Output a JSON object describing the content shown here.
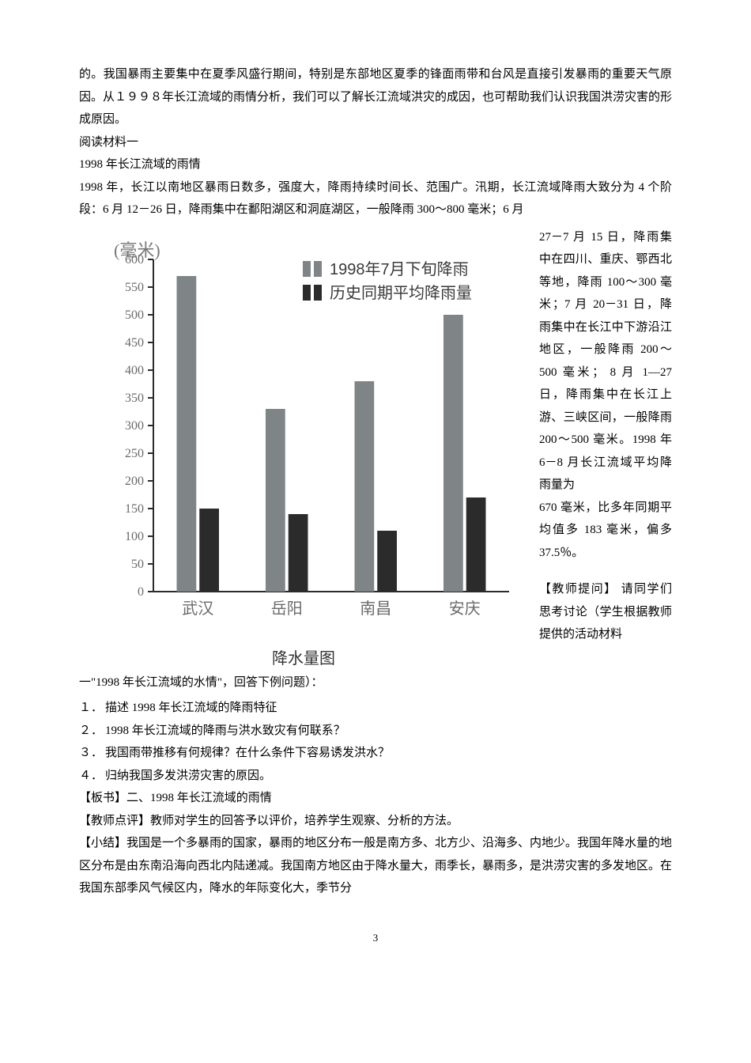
{
  "intro": {
    "p1": "的。我国暴雨主要集中在夏季风盛行期间，特别是东部地区夏季的锋面雨带和台风是直接引发暴雨的重要天气原因。从１９９８年长江流域的雨情分析，我们可以了解长江流域洪灾的成因，也可帮助我们认识我国洪涝灾害的形成原因。",
    "p2": "阅读材料一",
    "p3": "1998 年长江流域的雨情",
    "p4": "1998 年，长江以南地区暴雨日数多，强度大，降雨持续时间长、范围广。汛期，长江流域降雨大致分为 4 个阶段：6 月 12－26 日，降雨集中在鄱阳湖区和洞庭湖区，一般降雨 300～800 毫米；6 月"
  },
  "right": {
    "p1": "27－7 月 15 日，降雨集中在四川、重庆、鄂西北等地，降雨 100～300 毫米；7 月 20－31 日，降雨集中在长江中下游沿江地区，一般降雨 200～500 毫米； 8 月 1—27 日，降雨集中在长江上游、三峡区间，一般降雨 200～500 毫米。1998 年 6－8 月长江流域平均降雨量为",
    "p2": "670 毫米，比多年同期平均值多 183 毫米，偏多 37.5％。",
    "p3": "【教师提问】 请同学们思考讨论（学生根据教师提供的活动材料"
  },
  "below": {
    "lead": "一\"1998 年长江流域的水情\"，回答下例问题）：",
    "q1_num": "１．",
    "q1": "描述 1998 年长江流域的降雨特征",
    "q2_num": "２．",
    "q2": "1998 年长江流域的降雨与洪水致灾有何联系？",
    "q3_num": "３．",
    "q3": "我国雨带推移有何规律？在什么条件下容易诱发洪水？",
    "q4_num": "４．",
    "q4": "归纳我国多发洪涝灾害的原因。",
    "board": "【板书】二、1998 年长江流域的雨情",
    "comment": "【教师点评】教师对学生的回答予以评价，培养学生观察、分析的方法。",
    "summary": "【小结】我国是一个多暴雨的国家，暴雨的地区分布一般是南方多、北方少、沿海多、内地少。我国年降水量的地区分布是由东南沿海向西北内陆递减。我国南方地区由于降水量大，雨季长，暴雨多，是洪涝灾害的多发地区。在我国东部季风气候区内，降水的年际变化大，季节分"
  },
  "chart": {
    "type": "bar",
    "unit_label": "(毫米)",
    "caption": "降水量图",
    "legend": [
      "1998年7月下旬降雨",
      "历史同期平均降雨量"
    ],
    "legend_colors": [
      "#7f8486",
      "#2b2b2b"
    ],
    "categories": [
      "武汉",
      "岳阳",
      "南昌",
      "安庆"
    ],
    "series_a": [
      570,
      330,
      380,
      500
    ],
    "series_b": [
      150,
      140,
      110,
      170
    ],
    "ylim": [
      0,
      600
    ],
    "ytick_step": 50,
    "bar_color_a": "#7f8486",
    "bar_color_b": "#2b2b2b",
    "axis_color": "#2b2b2b",
    "tick_label_color": "#6a6a6a",
    "background_color": "#ffffff",
    "label_fontsize": 20,
    "tick_fontsize": 16
  },
  "page_number": "3"
}
